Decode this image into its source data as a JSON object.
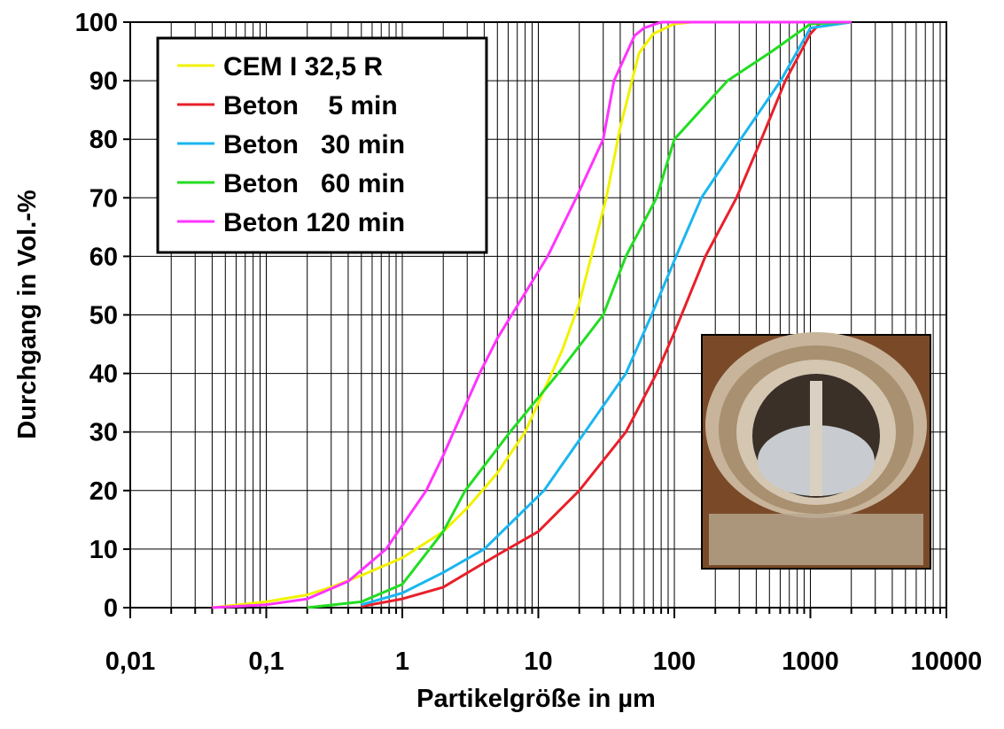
{
  "chart_data": {
    "type": "line",
    "x_label": "Partikelgröße in µm",
    "y_label": "Durchgang in Vol.-%",
    "log_x": true,
    "grid": true,
    "minor_grid": true,
    "legend_position": "upper left",
    "xlim": [
      0.01,
      10000
    ],
    "xticks": [
      {
        "value": 0.01,
        "label": "0,01"
      },
      {
        "value": 0.1,
        "label": "0,1"
      },
      1,
      10,
      100,
      1000,
      10000
    ],
    "ylim": [
      0,
      100
    ],
    "yticks": [
      0,
      10,
      20,
      30,
      40,
      50,
      60,
      70,
      80,
      90,
      100
    ],
    "series": [
      {
        "name": "CEM I 32,5 R",
        "color": "#f2f200",
        "x": [
          0.04,
          0.1,
          0.2,
          0.3,
          0.5,
          1,
          2,
          3,
          5,
          8,
          10,
          15,
          20,
          31.6,
          40,
          55,
          70,
          100,
          135,
          2000
        ],
        "values": [
          0,
          1,
          2.2,
          3.5,
          5.5,
          8.5,
          13,
          17,
          23,
          30,
          35,
          44,
          52,
          70,
          82,
          94.7,
          98,
          99.7,
          100,
          100
        ]
      },
      {
        "name": "Beton    5 min",
        "color": "#e8202a",
        "x": [
          0.5,
          1,
          2,
          5,
          10,
          20,
          44,
          74,
          100,
          169,
          286,
          436,
          655,
          1000,
          1200,
          2000
        ],
        "values": [
          0.2,
          1.5,
          3.5,
          9,
          13,
          20,
          30,
          40,
          47,
          60,
          70,
          80,
          90,
          98,
          100,
          100
        ]
      },
      {
        "name": "Beton   30 min",
        "color": "#1ab6f0",
        "x": [
          0.5,
          1,
          2,
          4,
          11,
          22,
          44,
          68,
          103,
          158,
          307,
          605,
          1000,
          2000
        ],
        "values": [
          0.5,
          2.5,
          6,
          10,
          20,
          30,
          40,
          50,
          60,
          70,
          80,
          90,
          99,
          100
        ]
      },
      {
        "name": "Beton   60 min",
        "color": "#22dd22",
        "x": [
          0.2,
          0.5,
          1,
          2,
          2.9,
          6.2,
          14,
          30,
          44,
          74,
          100,
          246,
          520,
          1000,
          2000
        ],
        "values": [
          0,
          1,
          4,
          13,
          20,
          30,
          40,
          50,
          60,
          70,
          80,
          90,
          95,
          99.7,
          100
        ]
      },
      {
        "name": "Beton 120 min",
        "color": "#ff33ff",
        "x": [
          0.04,
          0.1,
          0.2,
          0.4,
          0.76,
          1.5,
          2,
          3.7,
          5,
          11.7,
          19,
          30,
          36,
          51,
          60,
          80,
          2000
        ],
        "values": [
          0,
          0.5,
          1.5,
          4.5,
          10,
          20,
          26,
          40,
          46,
          60,
          70,
          80,
          90,
          97.7,
          99,
          100,
          100
        ]
      }
    ]
  }
}
